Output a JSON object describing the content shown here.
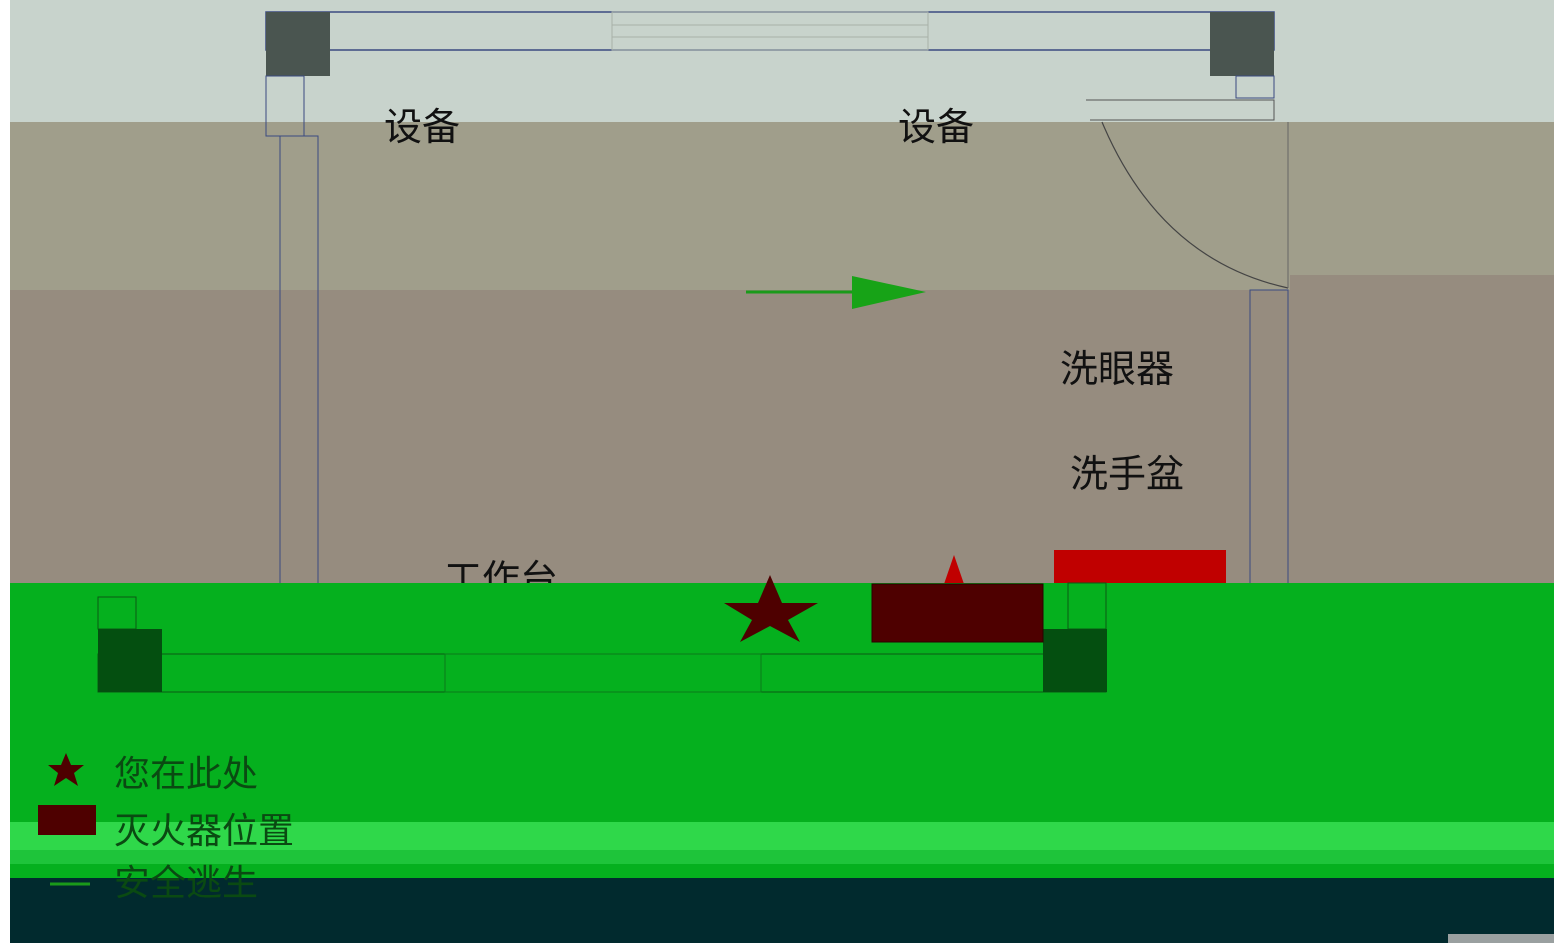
{
  "labels": {
    "equipment_left": "设备",
    "equipment_right": "设备",
    "eyewash": "洗眼器",
    "sink": "洗手盆",
    "workbench": "工作台"
  },
  "legend": [
    {
      "label": "您在此处"
    },
    {
      "label": "灭火器位置"
    },
    {
      "label": "安全逃生"
    }
  ]
}
